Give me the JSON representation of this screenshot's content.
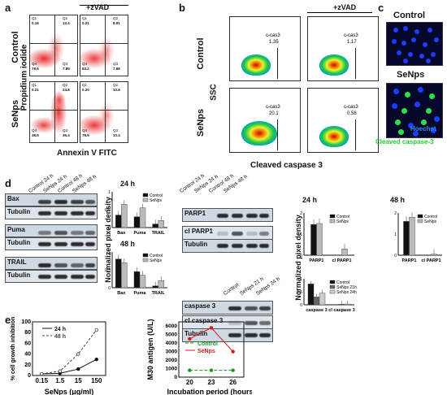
{
  "panels": {
    "a": "a",
    "b": "b",
    "c": "c",
    "d": "d",
    "e": "e"
  },
  "flow_a": {
    "col_title_zvad": "+zVAD",
    "row_control": "Control",
    "row_senps": "SeNps",
    "y_axis": "Propidium iodide",
    "x_axis": "Annexin V FITC",
    "quadrants": [
      {
        "q1": "Q1",
        "q1v": "0.16",
        "q2": "Q2",
        "q2v": "13.4",
        "q3": "Q3",
        "q3v": "7.89",
        "q4": "Q4",
        "q4v": "78.6"
      },
      {
        "q1": "Q1",
        "q1v": "0.21",
        "q2": "Q2",
        "q2v": "8.91",
        "q3": "Q3",
        "q3v": "7.69",
        "q4": "Q4",
        "q4v": "83.2"
      },
      {
        "q1": "Q1",
        "q1v": "0.21",
        "q2": "Q2",
        "q2v": "24.8",
        "q3": "Q3",
        "q3v": "36.4",
        "q4": "Q4",
        "q4v": "38.6"
      },
      {
        "q1": "Q1",
        "q1v": "0.20",
        "q2": "Q2",
        "q2v": "10.8",
        "q3": "Q3",
        "q3v": "10.4",
        "q4": "Q4",
        "q4v": "78.6"
      }
    ]
  },
  "flow_b": {
    "col_title_zvad": "+zVAD",
    "row_control": "Control",
    "row_senps": "SeNps",
    "y_axis": "SSC",
    "x_axis": "Cleaved caspase 3",
    "gates": [
      {
        "name": "c-cas3",
        "value": "1.35"
      },
      {
        "name": "c-cas3",
        "value": "1.17"
      },
      {
        "name": "c-cas3",
        "value": "20.1"
      },
      {
        "name": "c-cas3",
        "value": "0.58"
      }
    ]
  },
  "micro_c": {
    "top_label": "Control",
    "bottom_label": "SeNps",
    "legend1": "Hoechst",
    "legend2": "Cleaved caspase-3",
    "legend1_color": "#1e90ff",
    "legend2_color": "#22cc33"
  },
  "blot_left": {
    "lanes": [
      "Control 24 h",
      "SeNps 24 h",
      "Control 48 h",
      "SeNps 48 h"
    ],
    "rows": [
      "Bax",
      "Tubulin",
      "Puma",
      "Tubulin",
      "TRAIL",
      "Tubulin"
    ]
  },
  "bar_24": {
    "title": "24 h",
    "ylabel": "Normalized pixel density",
    "legend": [
      "Control",
      "SeNps"
    ],
    "categories": [
      "Bax",
      "Puma",
      "TRAIL"
    ]
  },
  "bar_48": {
    "title": "48 h",
    "legend": [
      "Control",
      "SeNps"
    ],
    "categories": [
      "Bax",
      "Puma",
      "TRAIL"
    ]
  },
  "blot_parp": {
    "lanes": [
      "Control 24 h",
      "SeNps 24 h",
      "Control 48 h",
      "SeNps 48 h"
    ],
    "rows": [
      "PARP1",
      "cl PARP1",
      "Tubulin"
    ]
  },
  "blot_cas": {
    "lanes": [
      "Control",
      "SeNps 21 h",
      "SeNps 24 h"
    ],
    "rows": [
      "caspase 3",
      "cl caspase 3",
      "Tubulin"
    ]
  },
  "parp_24": {
    "title": "24 h",
    "ylabel": "Normalized pixel density",
    "legend": [
      "Control",
      "SeNps"
    ],
    "categories": [
      "PARP1",
      "cl PARP1"
    ]
  },
  "parp_48": {
    "title": "48 h",
    "legend": [
      "Control",
      "SeNps"
    ],
    "categories": [
      "PARP1",
      "cl PARP1"
    ]
  },
  "cas_bar": {
    "legend": [
      "Control",
      "SeNps 21h",
      "SeNps 24h"
    ],
    "categories": [
      "caspase 3",
      "cl caspase 3"
    ]
  },
  "chart_e1": {
    "ylabel": "% cell growth inhibition",
    "xlabel": "SeNps (μg/ml)",
    "legend": [
      "24 h",
      "48 h"
    ],
    "xticks": [
      "0.15",
      "1.5",
      "15",
      "150"
    ],
    "yticks": [
      "0",
      "20",
      "40",
      "60",
      "80",
      "100"
    ]
  },
  "chart_e2": {
    "ylabel": "M30 antigen (U/L)",
    "xlabel": "Incubation period (hours)",
    "legend": [
      "Control",
      "SeNps"
    ],
    "xticks": [
      "20",
      "23",
      "26"
    ],
    "yticks": [
      "0",
      "1000",
      "2000",
      "3000",
      "4000",
      "5000",
      "6000"
    ]
  },
  "chart_data": [
    {
      "type": "bar",
      "title": "24 h",
      "categories": [
        "Bax",
        "Puma",
        "TRAIL"
      ],
      "series": [
        {
          "name": "Control",
          "values": [
            0.35,
            0.3,
            0.1
          ]
        },
        {
          "name": "SeNps",
          "values": [
            0.65,
            0.55,
            0.2
          ]
        }
      ],
      "ylim": [
        0,
        1
      ]
    },
    {
      "type": "bar",
      "title": "48 h",
      "categories": [
        "Bax",
        "Puma",
        "TRAIL"
      ],
      "series": [
        {
          "name": "Control",
          "values": [
            0.8,
            0.45,
            0.05
          ]
        },
        {
          "name": "SeNps",
          "values": [
            0.7,
            0.35,
            0.2
          ]
        }
      ],
      "ylim": [
        0,
        1
      ]
    },
    {
      "type": "bar",
      "title": "24 h",
      "categories": [
        "PARP1",
        "cl PARP1"
      ],
      "series": [
        {
          "name": "Control",
          "values": [
            1.45,
            0
          ]
        },
        {
          "name": "SeNps",
          "values": [
            1.5,
            0.3
          ]
        }
      ],
      "ylim": [
        0,
        2
      ]
    },
    {
      "type": "bar",
      "title": "48 h",
      "categories": [
        "PARP1",
        "cl PARP1"
      ],
      "series": [
        {
          "name": "Control",
          "values": [
            1.6,
            0
          ]
        },
        {
          "name": "SeNps",
          "values": [
            1.8,
            0.05
          ]
        }
      ],
      "ylim": [
        0,
        2
      ]
    },
    {
      "type": "bar",
      "categories": [
        "caspase 3",
        "cl caspase 3"
      ],
      "series": [
        {
          "name": "Control",
          "values": [
            0.8,
            0
          ]
        },
        {
          "name": "SeNps 21h",
          "values": [
            0.3,
            0.02
          ]
        },
        {
          "name": "SeNps 24h",
          "values": [
            0.45,
            0.03
          ]
        }
      ],
      "ylim": [
        0,
        1
      ]
    },
    {
      "type": "line",
      "xlabel": "SeNps (μg/ml)",
      "ylabel": "% cell growth inhibition",
      "x": [
        "0.15",
        "1.5",
        "15",
        "150"
      ],
      "series": [
        {
          "name": "24 h",
          "values": [
            3,
            4,
            12,
            30
          ]
        },
        {
          "name": "48 h",
          "values": [
            3,
            8,
            40,
            85
          ]
        }
      ],
      "ylim": [
        0,
        100
      ]
    },
    {
      "type": "line",
      "xlabel": "Incubation period (hours)",
      "ylabel": "M30 antigen (U/L)",
      "x": [
        20,
        23,
        26
      ],
      "series": [
        {
          "name": "Control",
          "values": [
            800,
            800,
            800
          ]
        },
        {
          "name": "SeNps",
          "values": [
            4500,
            5800,
            3000
          ]
        }
      ],
      "ylim": [
        0,
        6500
      ]
    }
  ]
}
